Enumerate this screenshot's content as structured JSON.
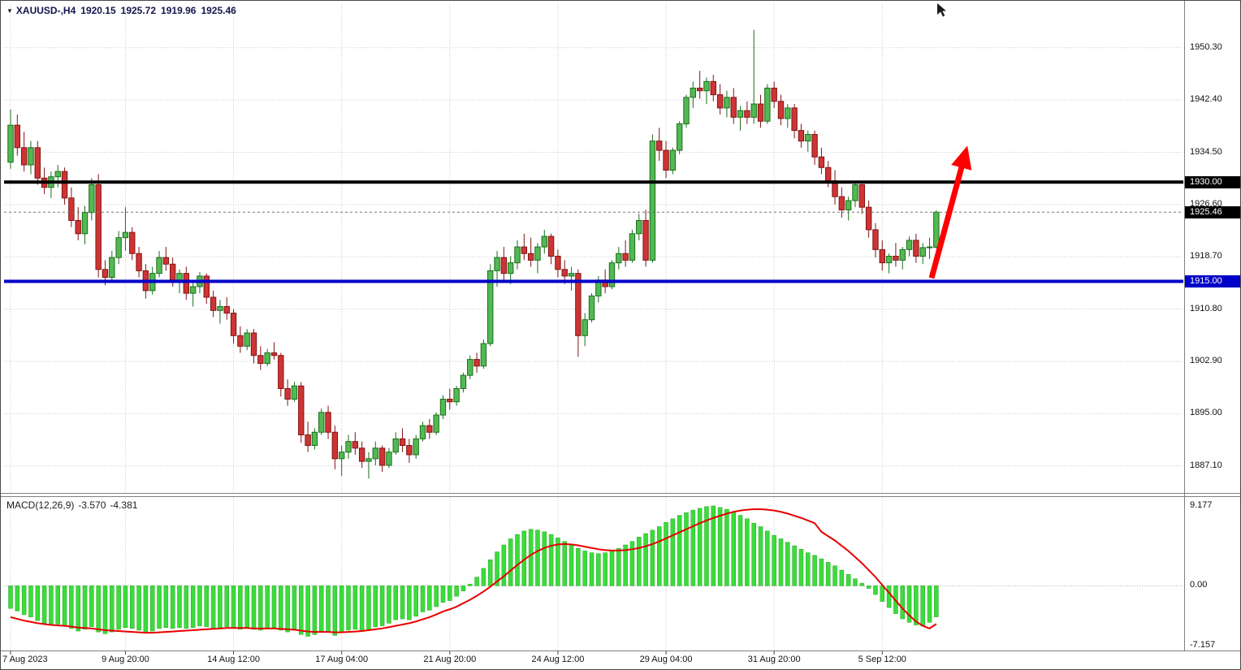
{
  "window": {
    "dropdown_glyph": "▼",
    "symbol": "XAUUSD-,H4",
    "ohlc": {
      "open": "1920.15",
      "high": "1925.72",
      "low": "1919.96",
      "close": "1925.46"
    }
  },
  "colors": {
    "bull": "#53b953",
    "bull_border": "#1a6e1a",
    "bear": "#cf3434",
    "bear_border": "#801414",
    "macd_hist": "#3bdc3b",
    "macd_hist_border": "#23a623",
    "macd_signal": "#e80000",
    "grid": "#c9c9c9",
    "current_tag_bg": "#000000",
    "arrow": "#ff0000"
  },
  "chart_data": {
    "type": "candlestick",
    "symbol": "XAUUSD-",
    "timeframe": "H4",
    "price_axis": {
      "ylim": [
        1883.2,
        1956.9
      ],
      "ticks": [
        {
          "text": "1950.30",
          "value": 1950.3
        },
        {
          "text": "1942.40",
          "value": 1942.4
        },
        {
          "text": "1934.50",
          "value": 1934.5
        },
        {
          "text": "1926.60",
          "value": 1926.6
        },
        {
          "text": "1918.70",
          "value": 1918.7
        },
        {
          "text": "1910.80",
          "value": 1910.8
        },
        {
          "text": "1902.90",
          "value": 1902.9
        },
        {
          "text": "1895.00",
          "value": 1895.0
        },
        {
          "text": "1887.10",
          "value": 1887.1
        }
      ]
    },
    "levels": [
      {
        "value": 1930.0,
        "label": "1930.00",
        "color": "#000000"
      },
      {
        "value": 1915.0,
        "label": "1915.00",
        "color": "#0000c8"
      }
    ],
    "current_price": {
      "value": 1925.46,
      "label": "1925.46"
    },
    "time_axis": {
      "labels": [
        {
          "text": "7 Aug 2023",
          "bar": 0
        },
        {
          "text": "9 Aug 20:00",
          "bar": 17
        },
        {
          "text": "14 Aug 12:00",
          "bar": 33
        },
        {
          "text": "17 Aug 04:00",
          "bar": 49
        },
        {
          "text": "21 Aug 20:00",
          "bar": 65
        },
        {
          "text": "24 Aug 12:00",
          "bar": 81
        },
        {
          "text": "29 Aug 04:00",
          "bar": 97
        },
        {
          "text": "31 Aug 20:00",
          "bar": 113
        },
        {
          "text": "5 Sep 12:00",
          "bar": 129
        }
      ]
    },
    "candles": [
      [
        1933.0,
        1941.0,
        1932.0,
        1938.6
      ],
      [
        1938.6,
        1940.2,
        1934.0,
        1935.2
      ],
      [
        1935.2,
        1937.6,
        1931.6,
        1932.6
      ],
      [
        1932.6,
        1936.2,
        1931.2,
        1935.2
      ],
      [
        1935.2,
        1936.2,
        1929.6,
        1930.6
      ],
      [
        1930.6,
        1932.2,
        1928.2,
        1929.2
      ],
      [
        1929.2,
        1931.6,
        1927.6,
        1930.8
      ],
      [
        1930.8,
        1932.6,
        1929.2,
        1931.6
      ],
      [
        1931.6,
        1932.2,
        1926.6,
        1927.6
      ],
      [
        1927.6,
        1929.2,
        1923.2,
        1924.2
      ],
      [
        1924.2,
        1926.2,
        1921.2,
        1922.2
      ],
      [
        1922.2,
        1926.4,
        1920.6,
        1925.4
      ],
      [
        1925.4,
        1930.6,
        1924.2,
        1929.6
      ],
      [
        1929.6,
        1931.2,
        1915.6,
        1916.8
      ],
      [
        1916.8,
        1918.2,
        1914.4,
        1915.6
      ],
      [
        1915.6,
        1919.6,
        1915.0,
        1918.6
      ],
      [
        1918.6,
        1922.6,
        1917.6,
        1921.6
      ],
      [
        1921.6,
        1926.2,
        1919.6,
        1922.4
      ],
      [
        1922.4,
        1923.2,
        1918.2,
        1919.2
      ],
      [
        1919.2,
        1920.2,
        1915.6,
        1916.6
      ],
      [
        1916.6,
        1917.6,
        1912.4,
        1913.6
      ],
      [
        1913.6,
        1917.2,
        1913.0,
        1916.2
      ],
      [
        1916.2,
        1919.6,
        1915.6,
        1918.6
      ],
      [
        1918.6,
        1920.2,
        1916.6,
        1917.6
      ],
      [
        1917.6,
        1918.6,
        1914.2,
        1915.2
      ],
      [
        1915.2,
        1916.8,
        1913.2,
        1916.2
      ],
      [
        1916.2,
        1917.2,
        1912.2,
        1913.2
      ],
      [
        1913.2,
        1915.2,
        1911.2,
        1914.2
      ],
      [
        1914.2,
        1916.4,
        1913.2,
        1915.8
      ],
      [
        1915.8,
        1916.2,
        1911.6,
        1912.6
      ],
      [
        1912.6,
        1913.6,
        1909.6,
        1910.6
      ],
      [
        1910.6,
        1912.2,
        1908.6,
        1911.2
      ],
      [
        1911.2,
        1912.6,
        1909.2,
        1910.2
      ],
      [
        1910.2,
        1910.8,
        1905.6,
        1906.8
      ],
      [
        1906.8,
        1908.2,
        1904.2,
        1905.2
      ],
      [
        1905.2,
        1907.8,
        1904.6,
        1907.2
      ],
      [
        1907.2,
        1907.8,
        1902.6,
        1903.8
      ],
      [
        1903.8,
        1905.2,
        1901.6,
        1902.6
      ],
      [
        1902.6,
        1904.8,
        1902.2,
        1904.2
      ],
      [
        1904.2,
        1905.8,
        1903.2,
        1903.8
      ],
      [
        1903.8,
        1904.2,
        1897.6,
        1898.8
      ],
      [
        1898.8,
        1900.2,
        1896.2,
        1897.2
      ],
      [
        1897.2,
        1899.8,
        1896.8,
        1899.2
      ],
      [
        1899.2,
        1899.8,
        1890.6,
        1891.8
      ],
      [
        1891.8,
        1893.8,
        1889.2,
        1890.2
      ],
      [
        1890.2,
        1892.8,
        1889.6,
        1892.2
      ],
      [
        1892.2,
        1895.8,
        1891.8,
        1895.2
      ],
      [
        1895.2,
        1896.2,
        1891.2,
        1892.2
      ],
      [
        1892.2,
        1893.2,
        1886.6,
        1888.2
      ],
      [
        1888.2,
        1890.2,
        1885.6,
        1889.2
      ],
      [
        1889.2,
        1891.8,
        1888.2,
        1890.8
      ],
      [
        1890.8,
        1892.2,
        1888.8,
        1889.8
      ],
      [
        1889.8,
        1890.8,
        1886.8,
        1887.8
      ],
      [
        1887.8,
        1889.2,
        1885.2,
        1888.2
      ],
      [
        1888.2,
        1890.8,
        1887.2,
        1889.8
      ],
      [
        1889.8,
        1890.2,
        1886.2,
        1887.2
      ],
      [
        1887.2,
        1889.8,
        1886.8,
        1889.2
      ],
      [
        1889.2,
        1892.2,
        1888.8,
        1891.2
      ],
      [
        1891.2,
        1892.8,
        1889.2,
        1890.2
      ],
      [
        1890.2,
        1891.2,
        1887.6,
        1888.8
      ],
      [
        1888.8,
        1891.8,
        1888.2,
        1891.2
      ],
      [
        1891.2,
        1893.8,
        1890.8,
        1893.2
      ],
      [
        1893.2,
        1894.2,
        1891.2,
        1892.2
      ],
      [
        1892.2,
        1895.2,
        1891.8,
        1894.8
      ],
      [
        1894.8,
        1897.8,
        1894.2,
        1897.2
      ],
      [
        1897.2,
        1898.8,
        1895.6,
        1896.8
      ],
      [
        1896.8,
        1899.2,
        1896.2,
        1898.8
      ],
      [
        1898.8,
        1901.2,
        1898.2,
        1900.8
      ],
      [
        1900.8,
        1903.8,
        1900.2,
        1903.2
      ],
      [
        1903.2,
        1904.2,
        1901.2,
        1902.2
      ],
      [
        1902.2,
        1906.2,
        1901.8,
        1905.6
      ],
      [
        1905.6,
        1917.6,
        1905.2,
        1916.6
      ],
      [
        1916.6,
        1919.6,
        1914.2,
        1918.6
      ],
      [
        1918.6,
        1920.2,
        1915.2,
        1916.2
      ],
      [
        1916.2,
        1918.8,
        1914.6,
        1917.8
      ],
      [
        1917.8,
        1921.2,
        1916.8,
        1920.2
      ],
      [
        1920.2,
        1922.2,
        1918.2,
        1919.2
      ],
      [
        1919.2,
        1921.6,
        1917.2,
        1918.2
      ],
      [
        1918.2,
        1920.8,
        1916.2,
        1920.2
      ],
      [
        1920.2,
        1922.8,
        1919.2,
        1921.8
      ],
      [
        1921.8,
        1922.2,
        1917.6,
        1918.8
      ],
      [
        1918.8,
        1919.8,
        1915.6,
        1916.8
      ],
      [
        1916.8,
        1918.2,
        1914.6,
        1915.8
      ],
      [
        1915.8,
        1917.2,
        1913.6,
        1916.2
      ],
      [
        1916.2,
        1916.8,
        1903.6,
        1906.8
      ],
      [
        1906.8,
        1910.2,
        1905.2,
        1909.2
      ],
      [
        1909.2,
        1913.2,
        1908.8,
        1912.8
      ],
      [
        1912.8,
        1915.8,
        1911.8,
        1915.2
      ],
      [
        1915.2,
        1916.8,
        1913.2,
        1914.2
      ],
      [
        1914.2,
        1918.2,
        1913.8,
        1917.8
      ],
      [
        1917.8,
        1920.2,
        1916.8,
        1919.2
      ],
      [
        1919.2,
        1921.2,
        1917.2,
        1918.2
      ],
      [
        1918.2,
        1922.8,
        1917.8,
        1922.2
      ],
      [
        1922.2,
        1925.2,
        1921.2,
        1924.2
      ],
      [
        1924.2,
        1925.8,
        1917.2,
        1918.2
      ],
      [
        1918.2,
        1937.2,
        1917.8,
        1936.2
      ],
      [
        1936.2,
        1938.2,
        1933.2,
        1934.8
      ],
      [
        1934.8,
        1936.2,
        1930.6,
        1931.8
      ],
      [
        1931.8,
        1935.2,
        1931.2,
        1934.8
      ],
      [
        1934.8,
        1939.2,
        1934.2,
        1938.8
      ],
      [
        1938.8,
        1943.2,
        1938.2,
        1942.8
      ],
      [
        1942.8,
        1945.2,
        1941.2,
        1944.2
      ],
      [
        1944.2,
        1946.8,
        1942.6,
        1943.8
      ],
      [
        1943.8,
        1945.8,
        1941.8,
        1945.2
      ],
      [
        1945.2,
        1946.2,
        1942.2,
        1943.2
      ],
      [
        1943.2,
        1944.8,
        1940.2,
        1941.2
      ],
      [
        1941.2,
        1943.8,
        1939.8,
        1942.8
      ],
      [
        1942.8,
        1944.2,
        1938.8,
        1939.8
      ],
      [
        1939.8,
        1941.5,
        1937.8,
        1940.8
      ],
      [
        1940.8,
        1942.2,
        1938.8,
        1939.8
      ],
      [
        1939.8,
        1953.0,
        1938.8,
        1941.8
      ],
      [
        1941.8,
        1943.2,
        1938.2,
        1939.2
      ],
      [
        1939.2,
        1944.8,
        1938.8,
        1944.2
      ],
      [
        1944.2,
        1945.2,
        1941.2,
        1942.2
      ],
      [
        1942.2,
        1943.2,
        1938.6,
        1939.6
      ],
      [
        1939.6,
        1941.8,
        1938.2,
        1941.2
      ],
      [
        1941.2,
        1941.8,
        1936.6,
        1937.8
      ],
      [
        1937.8,
        1938.8,
        1935.2,
        1936.2
      ],
      [
        1936.2,
        1937.8,
        1934.6,
        1937.2
      ],
      [
        1937.2,
        1937.8,
        1932.6,
        1933.8
      ],
      [
        1933.8,
        1935.2,
        1931.2,
        1932.2
      ],
      [
        1932.2,
        1933.2,
        1929.2,
        1930.2
      ],
      [
        1930.2,
        1931.8,
        1926.6,
        1927.8
      ],
      [
        1927.8,
        1929.2,
        1924.6,
        1925.8
      ],
      [
        1925.8,
        1927.8,
        1924.2,
        1927.2
      ],
      [
        1927.2,
        1930.2,
        1926.2,
        1929.6
      ],
      [
        1929.6,
        1930.2,
        1925.2,
        1926.2
      ],
      [
        1926.2,
        1927.2,
        1921.6,
        1922.8
      ],
      [
        1922.8,
        1923.8,
        1918.6,
        1919.8
      ],
      [
        1919.8,
        1921.2,
        1916.6,
        1917.8
      ],
      [
        1917.8,
        1919.2,
        1916.2,
        1918.8
      ],
      [
        1918.8,
        1920.8,
        1917.2,
        1918.2
      ],
      [
        1918.2,
        1920.2,
        1916.8,
        1919.8
      ],
      [
        1919.8,
        1921.8,
        1918.8,
        1921.2
      ],
      [
        1921.2,
        1922.2,
        1917.8,
        1918.8
      ],
      [
        1918.8,
        1920.8,
        1917.6,
        1920.1
      ],
      [
        1920.1,
        1921.6,
        1918.4,
        1920.2
      ],
      [
        1920.15,
        1925.72,
        1919.96,
        1925.46
      ]
    ],
    "annotation_arrow": {
      "from_bar": 136.3,
      "from_price": 1915.5,
      "to_bar": 141.6,
      "to_price": 1935.5,
      "color": "#ff0000"
    },
    "macd": {
      "label": "MACD(12,26,9)",
      "macd_value": "-3.570",
      "signal_value": "-4.381",
      "axis": {
        "ylim": [
          -7.157,
          9.177
        ],
        "ticks": [
          {
            "text": "9.177",
            "value": 9.177
          },
          {
            "text": "0.00",
            "value": 0
          },
          {
            "text": "-7.157",
            "value": -7.157
          }
        ]
      },
      "histogram": [
        -2.6,
        -2.9,
        -3.3,
        -3.6,
        -4.0,
        -4.3,
        -4.5,
        -4.4,
        -4.6,
        -4.9,
        -5.2,
        -5.0,
        -4.7,
        -5.3,
        -5.5,
        -5.3,
        -5.0,
        -4.8,
        -4.9,
        -5.1,
        -5.4,
        -5.2,
        -4.9,
        -4.8,
        -4.9,
        -4.8,
        -4.9,
        -4.8,
        -4.6,
        -4.7,
        -4.9,
        -4.8,
        -4.7,
        -4.9,
        -5.0,
        -4.8,
        -5.0,
        -5.1,
        -4.9,
        -4.8,
        -5.1,
        -5.3,
        -5.1,
        -5.6,
        -5.8,
        -5.6,
        -5.2,
        -5.3,
        -5.7,
        -5.4,
        -5.1,
        -5.0,
        -5.2,
        -5.0,
        -4.7,
        -4.6,
        -4.3,
        -3.9,
        -3.8,
        -3.9,
        -3.5,
        -3.0,
        -2.8,
        -2.4,
        -1.9,
        -1.7,
        -1.2,
        -0.6,
        0.2,
        1.0,
        2.0,
        3.0,
        3.9,
        4.7,
        5.4,
        5.9,
        6.3,
        6.5,
        6.4,
        6.2,
        5.9,
        5.5,
        5.1,
        4.7,
        4.3,
        4.0,
        3.8,
        3.7,
        3.8,
        4.0,
        4.3,
        4.7,
        5.1,
        5.6,
        6.0,
        6.4,
        6.8,
        7.3,
        7.7,
        8.1,
        8.4,
        8.7,
        8.9,
        9.1,
        9.18,
        9.0,
        8.8,
        8.5,
        8.1,
        7.7,
        7.2,
        6.8,
        6.3,
        5.8,
        5.4,
        5.0,
        4.6,
        4.2,
        3.8,
        3.5,
        3.1,
        2.7,
        2.3,
        1.8,
        1.3,
        0.8,
        0.3,
        -0.3,
        -1.0,
        -1.8,
        -2.5,
        -3.2,
        -3.8,
        -4.2,
        -4.5,
        -4.6,
        -4.2,
        -3.57
      ],
      "signal": [
        -3.6,
        -3.8,
        -4.0,
        -4.15,
        -4.3,
        -4.4,
        -4.5,
        -4.55,
        -4.6,
        -4.7,
        -4.8,
        -4.85,
        -4.9,
        -5.0,
        -5.1,
        -5.15,
        -5.2,
        -5.25,
        -5.3,
        -5.35,
        -5.4,
        -5.4,
        -5.35,
        -5.3,
        -5.25,
        -5.2,
        -5.15,
        -5.1,
        -5.05,
        -5.0,
        -4.95,
        -4.9,
        -4.85,
        -4.85,
        -4.85,
        -4.85,
        -4.9,
        -4.9,
        -4.9,
        -4.9,
        -4.95,
        -5.0,
        -5.05,
        -5.15,
        -5.25,
        -5.3,
        -5.3,
        -5.3,
        -5.35,
        -5.35,
        -5.3,
        -5.25,
        -5.2,
        -5.1,
        -5.0,
        -4.9,
        -4.75,
        -4.6,
        -4.45,
        -4.3,
        -4.1,
        -3.85,
        -3.6,
        -3.3,
        -2.95,
        -2.7,
        -2.4,
        -2.0,
        -1.6,
        -1.15,
        -0.65,
        -0.1,
        0.5,
        1.1,
        1.75,
        2.4,
        3.0,
        3.55,
        4.0,
        4.35,
        4.6,
        4.75,
        4.8,
        4.75,
        4.65,
        4.5,
        4.35,
        4.2,
        4.1,
        4.05,
        4.05,
        4.1,
        4.2,
        4.35,
        4.55,
        4.8,
        5.1,
        5.45,
        5.8,
        6.15,
        6.5,
        6.85,
        7.2,
        7.5,
        7.8,
        8.05,
        8.3,
        8.5,
        8.65,
        8.75,
        8.8,
        8.8,
        8.75,
        8.65,
        8.5,
        8.3,
        8.05,
        7.8,
        7.5,
        7.2,
        6.2,
        5.7,
        5.2,
        4.6,
        4.0,
        3.3,
        2.6,
        1.8,
        1.0,
        0.1,
        -0.8,
        -1.7,
        -2.6,
        -3.4,
        -4.1,
        -4.6,
        -4.9,
        -4.381
      ]
    }
  }
}
